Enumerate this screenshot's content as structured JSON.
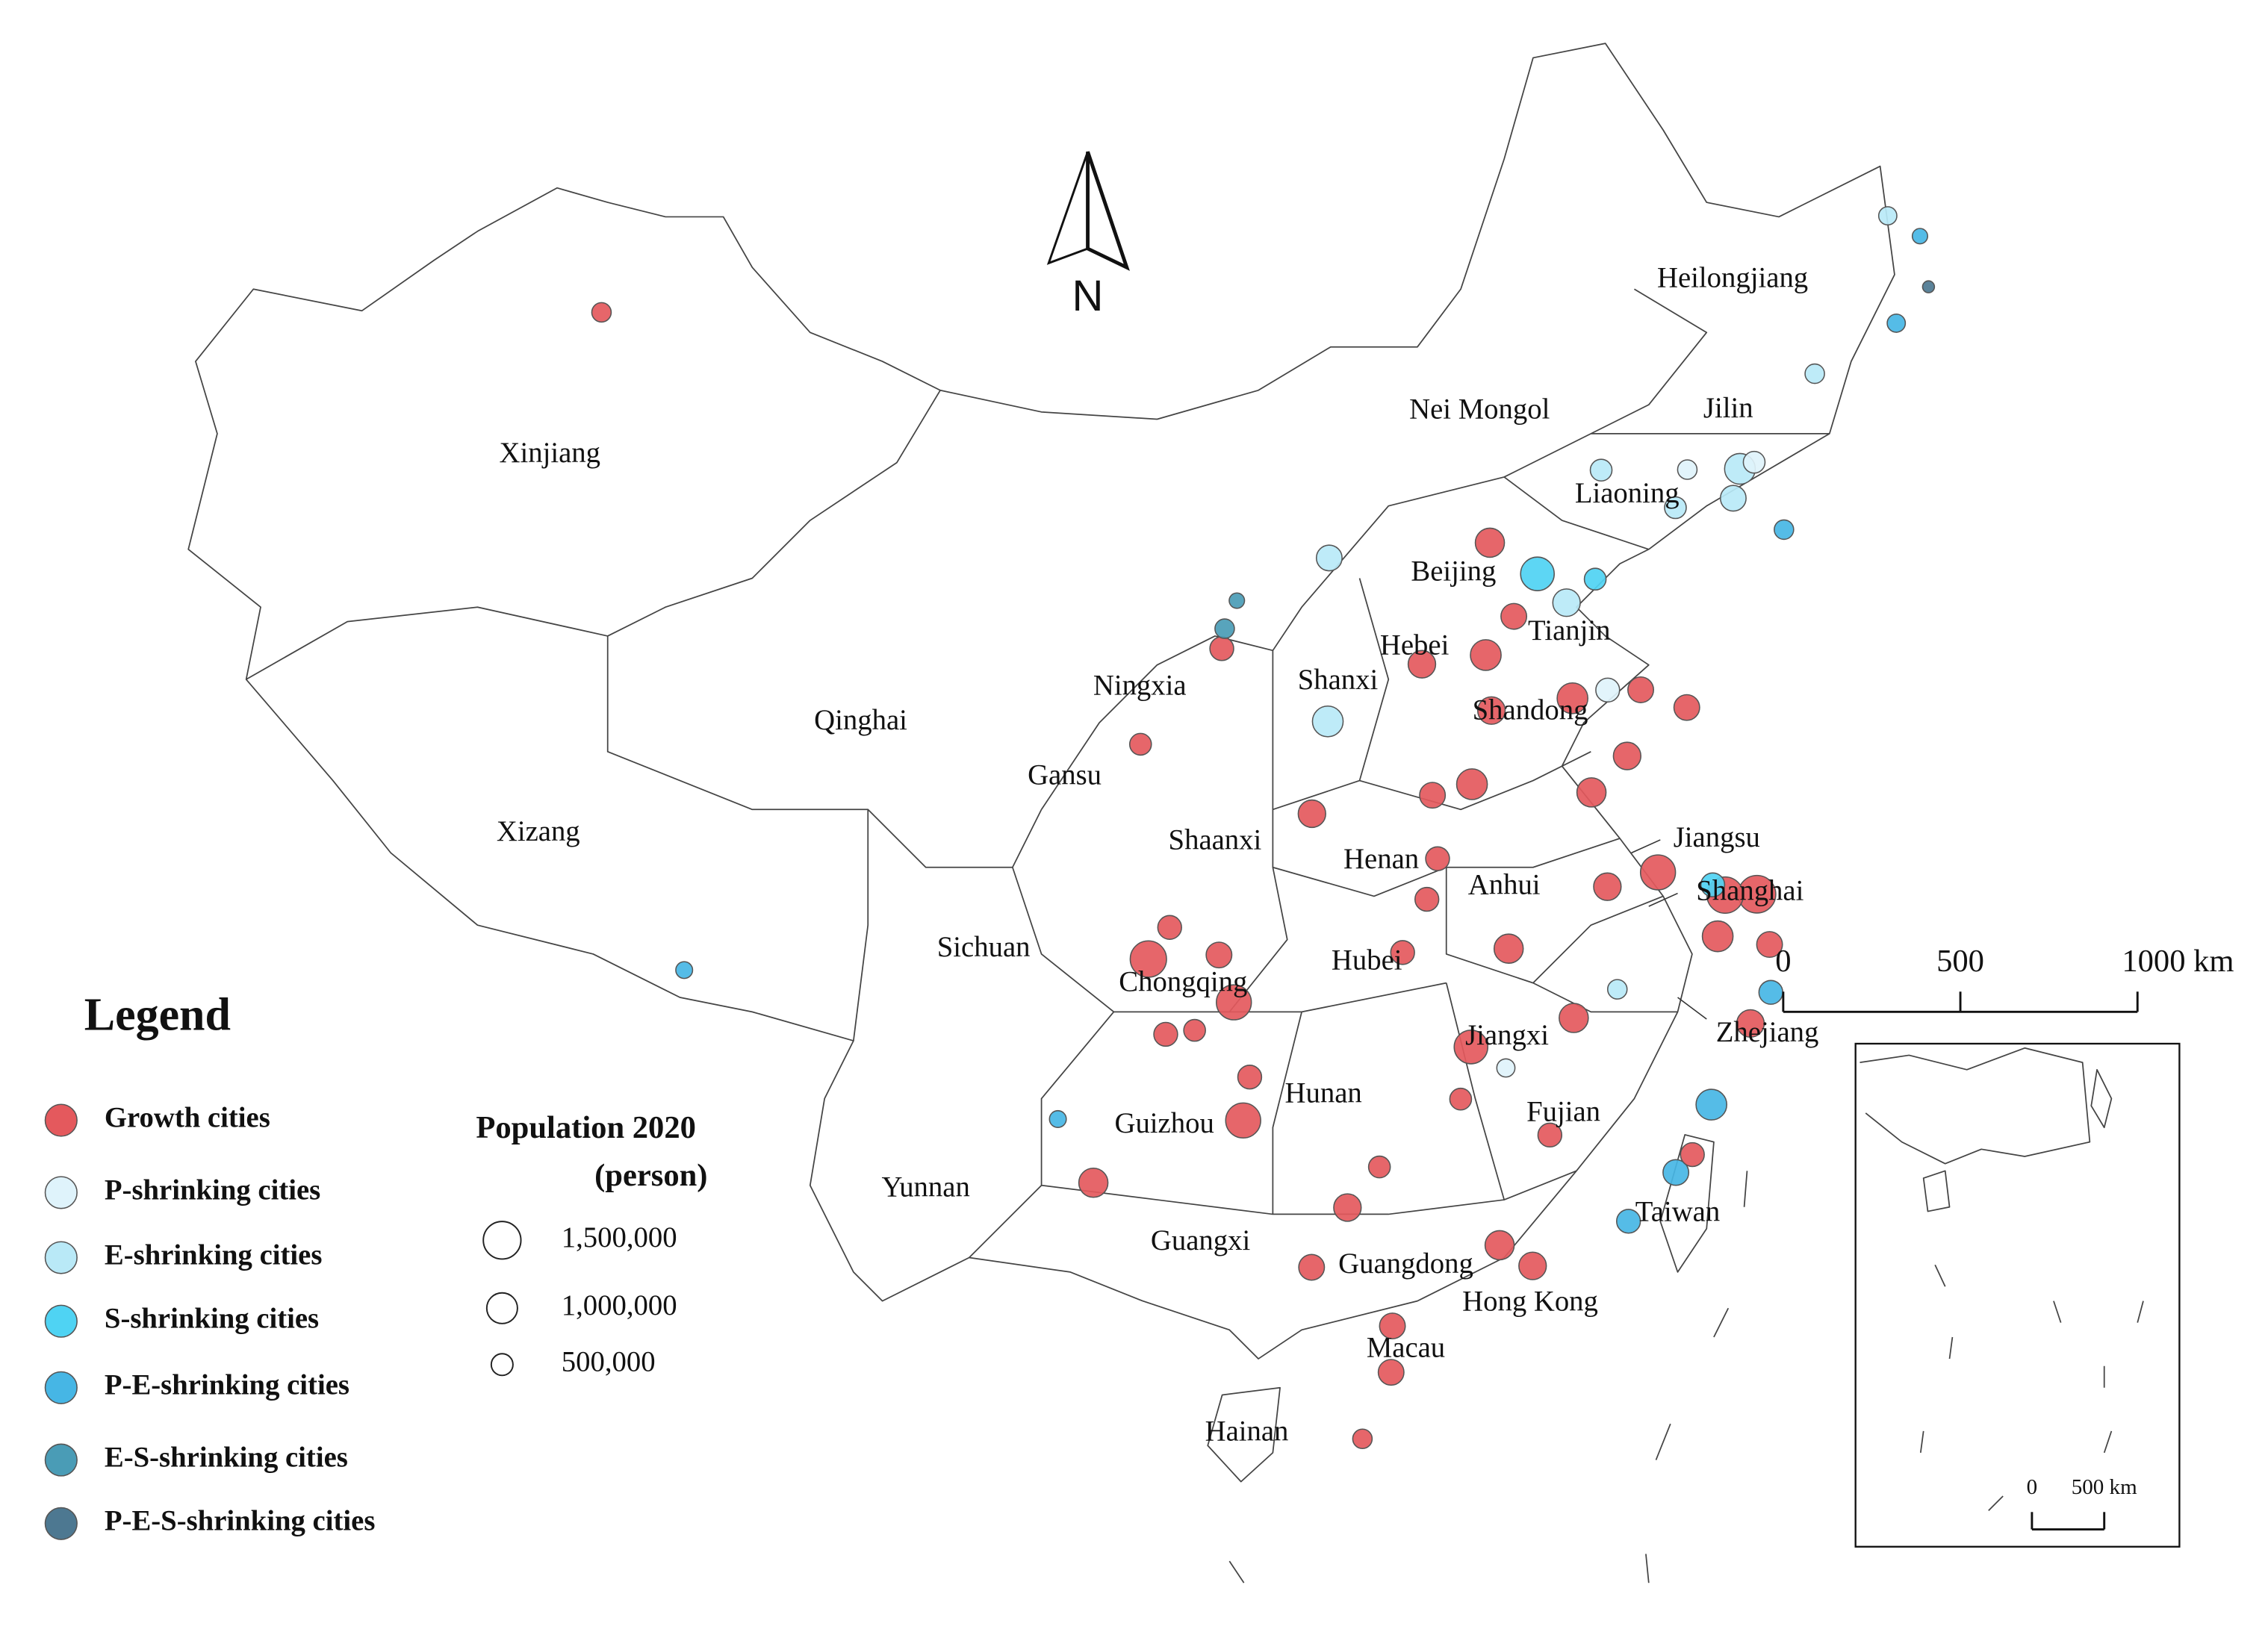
{
  "map": {
    "north_label": "N",
    "regions": [
      "Xinjiang",
      "Xizang",
      "Qinghai",
      "Gansu",
      "Ningxia",
      "Nei Mongol",
      "Heilongjiang",
      "Jilin",
      "Liaoning",
      "Beijing",
      "Tianjin",
      "Hebei",
      "Shanxi",
      "Shandong",
      "Shaanxi",
      "Henan",
      "Jiangsu",
      "Shanghai",
      "Anhui",
      "Sichuan",
      "Chongqing",
      "Hubei",
      "Jiangxi",
      "Zhejiang",
      "Hunan",
      "Guizhou",
      "Fujian",
      "Yunnan",
      "Taiwan",
      "Guangxi",
      "Guangdong",
      "Hong Kong",
      "Macau",
      "Hainan"
    ],
    "legend": {
      "title": "Legend",
      "classes": [
        {
          "name": "Growth cities",
          "color": "#e4595d"
        },
        {
          "name": "P-shrinking cities",
          "color": "#dff3fb"
        },
        {
          "name": "E-shrinking cities",
          "color": "#b9e9f7"
        },
        {
          "name": "S-shrinking cities",
          "color": "#4fd3f3"
        },
        {
          "name": "P-E-shrinking cities",
          "color": "#46b6e5"
        },
        {
          "name": "E-S-shrinking cities",
          "color": "#4a9cb6"
        },
        {
          "name": "P-E-S-shrinking cities",
          "color": "#4d7891"
        }
      ]
    },
    "size_legend": {
      "title": [
        "Population 2020",
        "(person)"
      ],
      "values": [
        {
          "value": 1500000,
          "label": "1,500,000"
        },
        {
          "value": 1000000,
          "label": "1,000,000"
        },
        {
          "value": 500000,
          "label": "500,000"
        }
      ]
    },
    "scale_bar": {
      "ticks": [
        0,
        500,
        {
          "value": 1000,
          "label": "1000 km"
        }
      ]
    },
    "inset_scale_bar": {
      "ticks": [
        0,
        {
          "value": 500,
          "label": "500 km"
        }
      ]
    },
    "cities": {
      "lon": [
        84.9,
        115.0,
        104.1,
        106.5,
        102.7,
        106.7,
        108.4,
        113.3,
        114.1,
        113.0,
        114.3,
        113.7,
        108.9,
        117.3,
        118.8,
        120.2,
        120.6,
        117.0,
        120.4,
        114.5,
        112.5,
        103.8,
        115.9,
        110.3,
        109.5,
        110.4,
        104.7,
        106.1,
        104.6,
        105.4,
        106.9,
        109.4,
        110.3,
        112.6,
        111.3,
        112.1,
        112.5,
        112.5,
        117.2,
        118.4,
        119.1,
        114.5,
        115.5,
        120.7,
        121.6,
        106.3,
        114.9,
        118.6,
        121.5,
        131.0,
        131.2,
        130.3,
        129.6,
        126.5,
        123.4,
        123.9,
        123.0,
        124.4,
        121.1,
        121.7,
        109.8,
        118.9,
        116.4,
        117.2,
        118.2,
        109.5,
        106.8,
        106.4,
        91.1,
        101.7,
        119.3,
        118.1,
        116.7,
        121.4,
        113.9,
        117.2,
        118.1,
        120.3
      ],
      "lat": [
        45.6,
        40.8,
        30.7,
        29.6,
        25.0,
        26.6,
        22.8,
        23.1,
        22.5,
        28.2,
        30.6,
        34.8,
        34.3,
        31.9,
        32.1,
        30.3,
        31.3,
        36.7,
        36.1,
        38.0,
        37.9,
        36.1,
        28.7,
        20.0,
        18.3,
        21.2,
        31.5,
        30.8,
        28.8,
        28.9,
        27.7,
        24.3,
        25.3,
        26.9,
        30.7,
        32.0,
        34.6,
        33.0,
        34.3,
        35.1,
        36.7,
        36.6,
        38.9,
        28.0,
        29.9,
        38.5,
        25.8,
        24.9,
        31.2,
        45.3,
        46.6,
        47.3,
        44.6,
        43.8,
        41.8,
        41.9,
        41.1,
        40.1,
        41.1,
        42.0,
        40.7,
        42.3,
        39.9,
        39.1,
        39.6,
        36.6,
        39.7,
        39.0,
        29.6,
        26.6,
        26.1,
        24.5,
        23.4,
        28.7,
        27.6,
        29.3,
        36.8,
        31.6
      ],
      "population": [
        400000,
        900000,
        1400000,
        1300000,
        900000,
        1300000,
        700000,
        900000,
        800000,
        1200000,
        900000,
        1000000,
        800000,
        800000,
        1300000,
        1000000,
        1400000,
        1000000,
        700000,
        1000000,
        800000,
        500000,
        900000,
        700000,
        400000,
        700000,
        600000,
        700000,
        600000,
        500000,
        600000,
        800000,
        500000,
        500000,
        600000,
        600000,
        700000,
        600000,
        900000,
        800000,
        700000,
        800000,
        700000,
        800000,
        700000,
        600000,
        600000,
        600000,
        1500000,
        150000,
        250000,
        350000,
        350000,
        400000,
        1000000,
        500000,
        700000,
        400000,
        500000,
        400000,
        700000,
        500000,
        1200000,
        800000,
        500000,
        1000000,
        250000,
        400000,
        300000,
        300000,
        1000000,
        700000,
        600000,
        600000,
        350000,
        400000,
        600000,
        600000
      ],
      "class": [
        0,
        0,
        0,
        0,
        0,
        0,
        0,
        0,
        0,
        0,
        0,
        0,
        0,
        0,
        0,
        0,
        0,
        0,
        0,
        0,
        0,
        0,
        0,
        0,
        0,
        0,
        0,
        0,
        0,
        0,
        0,
        0,
        0,
        0,
        0,
        0,
        0,
        0,
        0,
        0,
        0,
        0,
        0,
        0,
        0,
        0,
        0,
        0,
        0,
        6,
        4,
        2,
        4,
        2,
        2,
        1,
        2,
        4,
        2,
        1,
        2,
        2,
        3,
        2,
        3,
        2,
        5,
        5,
        4,
        4,
        4,
        4,
        4,
        4,
        1,
        2,
        1,
        3
      ]
    }
  }
}
